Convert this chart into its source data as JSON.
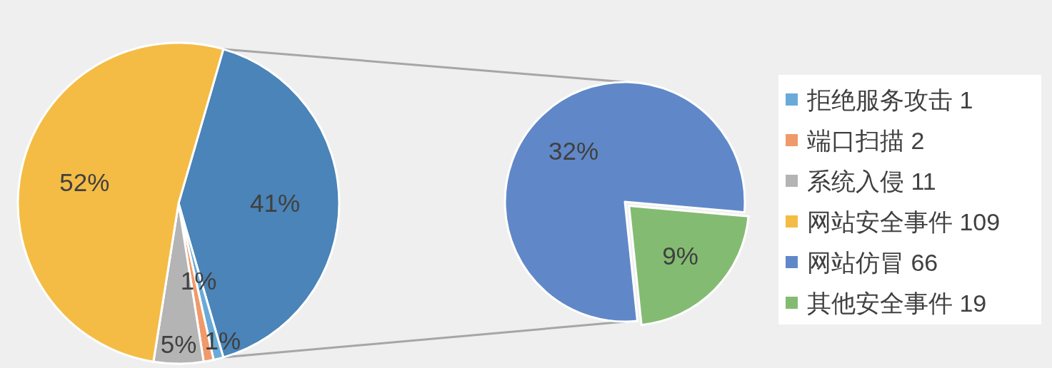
{
  "chart_data": [
    {
      "type": "pie",
      "categories": [
        null,
        "拒绝服务攻击 1",
        "端口扫描 2",
        "系统入侵 11",
        "网站安全事件 109"
      ],
      "values": [
        41,
        1,
        1,
        5,
        52
      ],
      "value_labels": [
        "41%",
        "1%",
        "1%",
        "5%",
        "52%"
      ],
      "colors": [
        "#4a84b8",
        "#6aaad8",
        "#ef9a6a",
        "#b4b4b4",
        "#f4bc45"
      ],
      "legend": "right"
    },
    {
      "type": "pie",
      "categories": [
        "网站仿冒 66",
        "其他安全事件 19"
      ],
      "values": [
        32,
        9
      ],
      "value_labels": [
        "32%",
        "9%"
      ],
      "colors": [
        "#6088c8",
        "#84bb72"
      ],
      "legend": "right"
    }
  ]
}
